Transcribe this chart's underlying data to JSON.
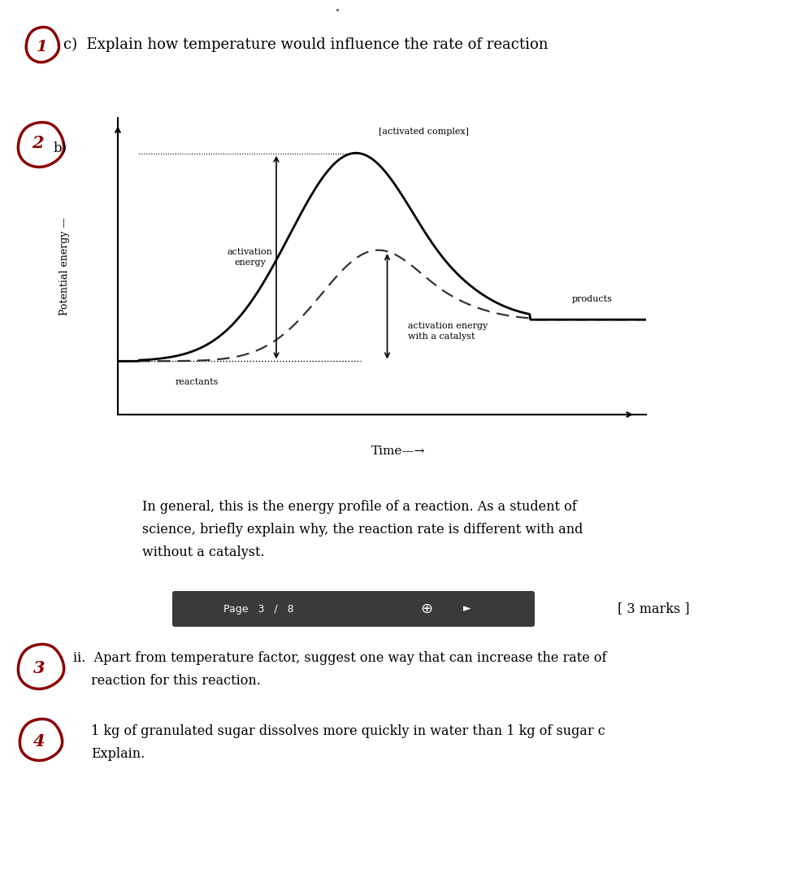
{
  "background_color": "#ffffff",
  "title_text": "c)  Explain how temperature would influence the rate of reaction",
  "circle_color": "#8b0000",
  "plot_line_color": "#000000",
  "plot_dash_color": "#555555",
  "label_reactants": "reactants",
  "label_products": "products",
  "label_activated_complex": "[activated complex]",
  "label_activation_energy": "activation\nenergy",
  "label_activation_catalyst": "activation energy\nwith a catalyst",
  "ylabel": "Potential energy —",
  "xlabel": "Time—→",
  "text_body_1": "In general, this is the energy profile of a reaction. As a student of",
  "text_body_2": "science, briefly explain why, the reaction rate is different with and",
  "text_body_3": "without a catalyst.",
  "marks_text": "[ 3 marks ]",
  "q3_line1": "ii.  Apart from temperature factor, suggest one way that can increase the rate of",
  "q3_line2": "     reaction for this reaction.",
  "q4_line1": "1 kg of granulated sugar dissolves more quickly in water than 1 kg of sugar c",
  "q4_line2": "Explain.",
  "nav_bar_text": "Page   3   /   8",
  "nav_bar_color": "#3a3a3a"
}
